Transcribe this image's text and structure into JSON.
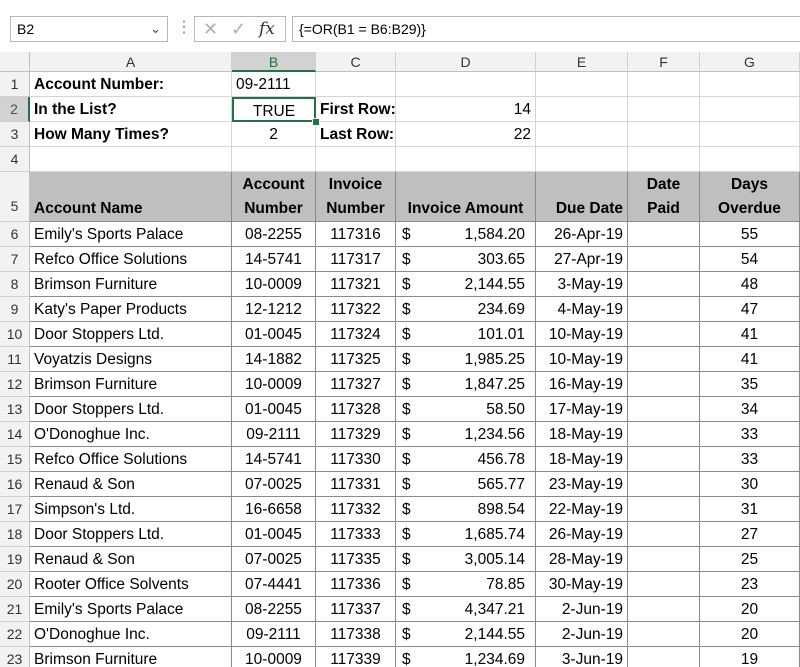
{
  "formula_bar": {
    "name_box": "B2",
    "formula": "{=OR(B1 = B6:B29)}"
  },
  "columns": [
    "A",
    "B",
    "C",
    "D",
    "E",
    "F",
    "G"
  ],
  "selected_column": "B",
  "rows": [
    "1",
    "2",
    "3",
    "4",
    "5",
    "6",
    "7",
    "8",
    "9",
    "10",
    "11",
    "12",
    "13",
    "14",
    "15",
    "16",
    "17",
    "18",
    "19",
    "20",
    "21",
    "22",
    "23"
  ],
  "selected_row": "2",
  "top": {
    "a1": "Account Number:",
    "b1": "09-2111",
    "a2": "In the List?",
    "b2": "TRUE",
    "c2": "First Row:",
    "d2": "14",
    "a3": "How Many Times?",
    "b3": "2",
    "c3": "Last Row:",
    "d3": "22"
  },
  "table_headers": [
    "Account Name",
    "Account Number",
    "Invoice Number",
    "Invoice Amount",
    "Due Date",
    "Date Paid",
    "Days Overdue"
  ],
  "currency_symbol": "$",
  "table_rows": [
    [
      "Emily's Sports Palace",
      "08-2255",
      "117316",
      "1,584.20",
      "26-Apr-19",
      "",
      "55"
    ],
    [
      "Refco Office Solutions",
      "14-5741",
      "117317",
      "303.65",
      "27-Apr-19",
      "",
      "54"
    ],
    [
      "Brimson Furniture",
      "10-0009",
      "117321",
      "2,144.55",
      "3-May-19",
      "",
      "48"
    ],
    [
      "Katy's Paper Products",
      "12-1212",
      "117322",
      "234.69",
      "4-May-19",
      "",
      "47"
    ],
    [
      "Door Stoppers Ltd.",
      "01-0045",
      "117324",
      "101.01",
      "10-May-19",
      "",
      "41"
    ],
    [
      "Voyatzis Designs",
      "14-1882",
      "117325",
      "1,985.25",
      "10-May-19",
      "",
      "41"
    ],
    [
      "Brimson Furniture",
      "10-0009",
      "117327",
      "1,847.25",
      "16-May-19",
      "",
      "35"
    ],
    [
      "Door Stoppers Ltd.",
      "01-0045",
      "117328",
      "58.50",
      "17-May-19",
      "",
      "34"
    ],
    [
      "O'Donoghue Inc.",
      "09-2111",
      "117329",
      "1,234.56",
      "18-May-19",
      "",
      "33"
    ],
    [
      "Refco Office Solutions",
      "14-5741",
      "117330",
      "456.78",
      "18-May-19",
      "",
      "33"
    ],
    [
      "Renaud & Son",
      "07-0025",
      "117331",
      "565.77",
      "23-May-19",
      "",
      "30"
    ],
    [
      "Simpson's Ltd.",
      "16-6658",
      "117332",
      "898.54",
      "22-May-19",
      "",
      "31"
    ],
    [
      "Door Stoppers Ltd.",
      "01-0045",
      "117333",
      "1,685.74",
      "26-May-19",
      "",
      "27"
    ],
    [
      "Renaud & Son",
      "07-0025",
      "117335",
      "3,005.14",
      "28-May-19",
      "",
      "25"
    ],
    [
      "Rooter Office Solvents",
      "07-4441",
      "117336",
      "78.85",
      "30-May-19",
      "",
      "23"
    ],
    [
      "Emily's Sports Palace",
      "08-2255",
      "117337",
      "4,347.21",
      "2-Jun-19",
      "",
      "20"
    ],
    [
      "O'Donoghue Inc.",
      "09-2111",
      "117338",
      "2,144.55",
      "2-Jun-19",
      "",
      "20"
    ],
    [
      "Brimson Furniture",
      "10-0009",
      "117339",
      "1,234.69",
      "3-Jun-19",
      "",
      "19"
    ]
  ],
  "colors": {
    "selection_green": "#217346",
    "header_gray": "#bfbfbf"
  }
}
